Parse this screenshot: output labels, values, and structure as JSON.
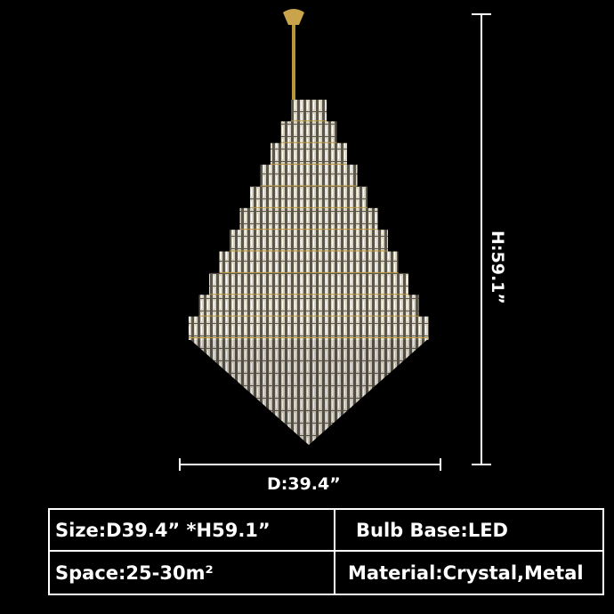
{
  "dimensions": {
    "diameter_label": "D:39.4”",
    "height_label": "H:59.1”"
  },
  "specs": [
    {
      "text": "Size:D39.4”  *H59.1”"
    },
    {
      "text": "Bulb Base:LED"
    },
    {
      "text": "Space:25-30m²"
    },
    {
      "text": "Material:Crystal,Metal"
    }
  ],
  "colors": {
    "background": "#000000",
    "crystal": "#d8d2c0",
    "gold": "#b8963c",
    "text": "#ffffff"
  }
}
